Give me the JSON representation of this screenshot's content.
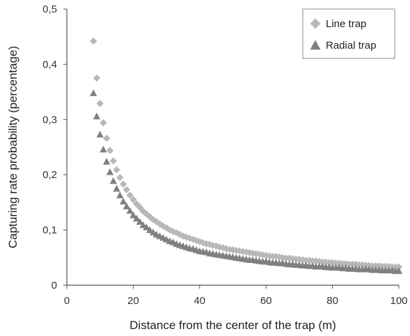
{
  "chart_data": {
    "type": "scatter",
    "title": "",
    "xlabel": "Distance from the center of the trap (m)",
    "ylabel": "Capturing rate probability (percentage)",
    "xlim": [
      0,
      100
    ],
    "ylim": [
      0,
      0.5
    ],
    "xticks": [
      "0",
      "20",
      "40",
      "60",
      "80",
      "100"
    ],
    "yticks": [
      "0",
      "0,1",
      "0,2",
      "0,3",
      "0,4",
      "0,5"
    ],
    "legend_position": "top-right",
    "grid": false,
    "series": [
      {
        "name": "Line trap",
        "marker": "diamond",
        "color": "#b8b8b8",
        "x": [
          8,
          9,
          10,
          11,
          12,
          13,
          14,
          15,
          16,
          17,
          18,
          19,
          20,
          21,
          22,
          23,
          24,
          25,
          26,
          27,
          28,
          29,
          30,
          31,
          32,
          33,
          34,
          35,
          36,
          37,
          38,
          39,
          40,
          41,
          42,
          43,
          44,
          45,
          46,
          47,
          48,
          49,
          50,
          51,
          52,
          53,
          54,
          55,
          56,
          57,
          58,
          59,
          60,
          61,
          62,
          63,
          64,
          65,
          66,
          67,
          68,
          69,
          70,
          71,
          72,
          73,
          74,
          75,
          76,
          77,
          78,
          79,
          80,
          81,
          82,
          83,
          84,
          85,
          86,
          87,
          88,
          89,
          90,
          91,
          92,
          93,
          94,
          95,
          96,
          97,
          98,
          99,
          100
        ],
        "y": [
          0.442,
          0.375,
          0.329,
          0.294,
          0.266,
          0.244,
          0.225,
          0.209,
          0.195,
          0.183,
          0.173,
          0.163,
          0.155,
          0.147,
          0.141,
          0.134,
          0.129,
          0.124,
          0.119,
          0.115,
          0.111,
          0.107,
          0.104,
          0.1,
          0.097,
          0.095,
          0.092,
          0.089,
          0.087,
          0.085,
          0.083,
          0.081,
          0.079,
          0.077,
          0.075,
          0.074,
          0.072,
          0.071,
          0.069,
          0.068,
          0.066,
          0.065,
          0.064,
          0.063,
          0.062,
          0.061,
          0.06,
          0.059,
          0.058,
          0.057,
          0.056,
          0.055,
          0.054,
          0.053,
          0.052,
          0.052,
          0.051,
          0.05,
          0.049,
          0.049,
          0.048,
          0.047,
          0.047,
          0.046,
          0.045,
          0.045,
          0.044,
          0.044,
          0.043,
          0.042,
          0.042,
          0.041,
          0.041,
          0.04,
          0.04,
          0.039,
          0.039,
          0.038,
          0.038,
          0.038,
          0.037,
          0.037,
          0.036,
          0.036,
          0.035,
          0.035,
          0.035,
          0.034,
          0.034,
          0.034,
          0.033,
          0.033,
          0.033
        ]
      },
      {
        "name": "Radial trap",
        "marker": "triangle",
        "color": "#808080",
        "x": [
          8,
          9,
          10,
          11,
          12,
          13,
          14,
          15,
          16,
          17,
          18,
          19,
          20,
          21,
          22,
          23,
          24,
          25,
          26,
          27,
          28,
          29,
          30,
          31,
          32,
          33,
          34,
          35,
          36,
          37,
          38,
          39,
          40,
          41,
          42,
          43,
          44,
          45,
          46,
          47,
          48,
          49,
          50,
          51,
          52,
          53,
          54,
          55,
          56,
          57,
          58,
          59,
          60,
          61,
          62,
          63,
          64,
          65,
          66,
          67,
          68,
          69,
          70,
          71,
          72,
          73,
          74,
          75,
          76,
          77,
          78,
          79,
          80,
          81,
          82,
          83,
          84,
          85,
          86,
          87,
          88,
          89,
          90,
          91,
          92,
          93,
          94,
          95,
          96,
          97,
          98,
          99,
          100
        ],
        "y": [
          0.348,
          0.306,
          0.273,
          0.246,
          0.224,
          0.205,
          0.189,
          0.175,
          0.163,
          0.152,
          0.143,
          0.135,
          0.127,
          0.121,
          0.115,
          0.109,
          0.105,
          0.1,
          0.096,
          0.092,
          0.089,
          0.086,
          0.083,
          0.08,
          0.078,
          0.075,
          0.073,
          0.071,
          0.069,
          0.067,
          0.066,
          0.064,
          0.062,
          0.061,
          0.06,
          0.058,
          0.057,
          0.056,
          0.055,
          0.054,
          0.053,
          0.052,
          0.051,
          0.05,
          0.049,
          0.048,
          0.047,
          0.046,
          0.046,
          0.045,
          0.044,
          0.043,
          0.043,
          0.042,
          0.041,
          0.041,
          0.04,
          0.04,
          0.039,
          0.038,
          0.038,
          0.037,
          0.037,
          0.036,
          0.036,
          0.035,
          0.035,
          0.034,
          0.034,
          0.034,
          0.033,
          0.033,
          0.032,
          0.032,
          0.032,
          0.031,
          0.031,
          0.03,
          0.03,
          0.03,
          0.029,
          0.029,
          0.029,
          0.029,
          0.028,
          0.028,
          0.028,
          0.027,
          0.027,
          0.027,
          0.027,
          0.026,
          0.026
        ]
      }
    ]
  }
}
